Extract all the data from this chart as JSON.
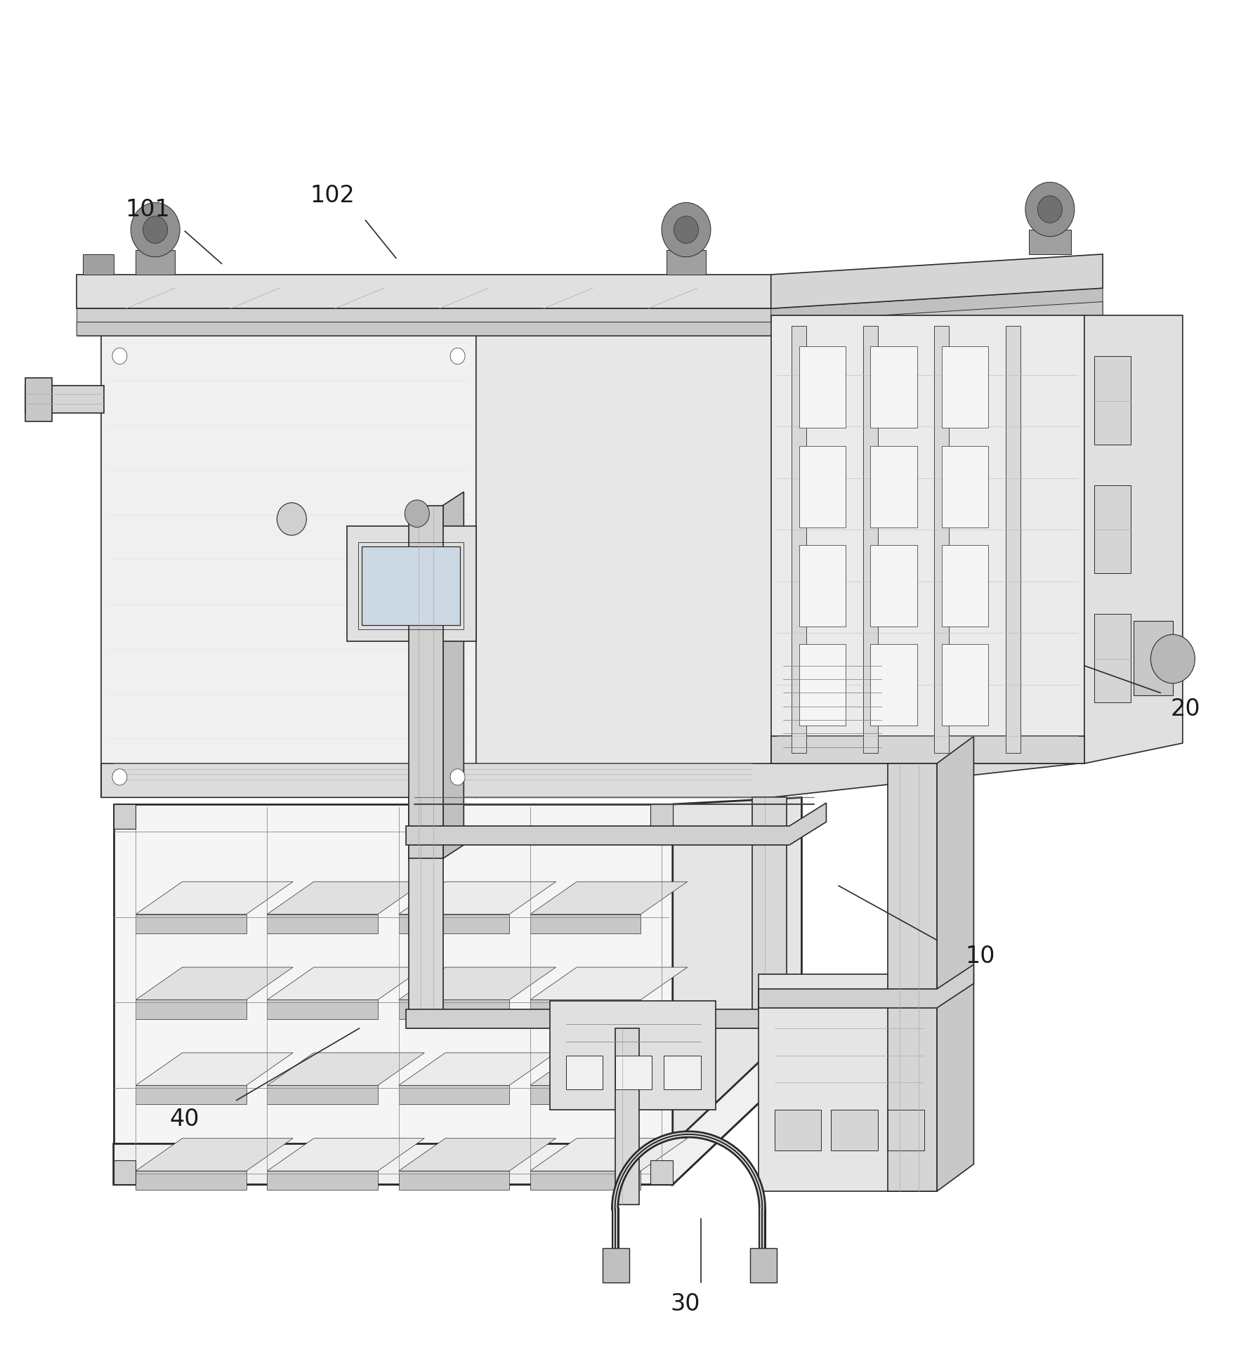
{
  "bg_color": "#ffffff",
  "line_color": "#2a2a2a",
  "label_color": "#1a1a1a",
  "fig_width": 17.58,
  "fig_height": 19.42,
  "dpi": 100
}
